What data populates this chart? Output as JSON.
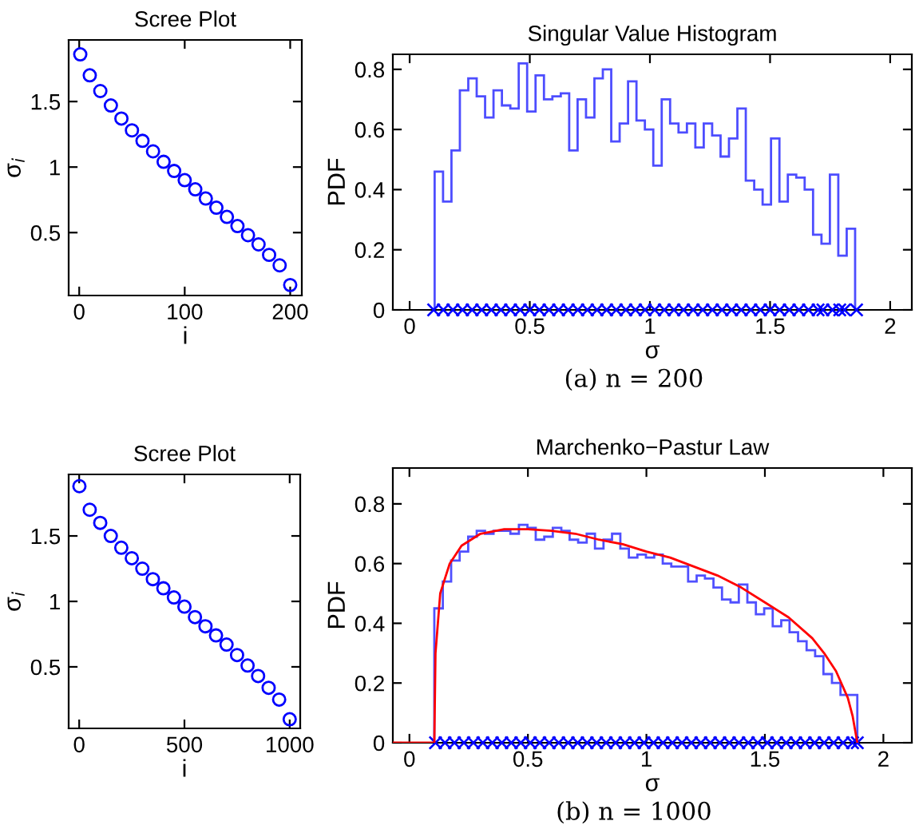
{
  "chart_data": [
    {
      "type": "scatter",
      "title": "Scree Plot",
      "xlabel": "i",
      "ylabel": "σ$_{i}$",
      "xlim": [
        -10,
        211
      ],
      "ylim": [
        0.02,
        1.97
      ],
      "xticks": [
        0,
        100,
        200
      ],
      "yticks": [
        0.5,
        1,
        1.5
      ],
      "marker": "circle",
      "series": [
        {
          "color": "#0000ff",
          "x": [
            1,
            10,
            20,
            30,
            40,
            50,
            60,
            70,
            80,
            90,
            100,
            110,
            120,
            130,
            140,
            150,
            160,
            170,
            180,
            190,
            200
          ],
          "values": [
            1.86,
            1.7,
            1.58,
            1.47,
            1.37,
            1.28,
            1.2,
            1.12,
            1.04,
            0.97,
            0.9,
            0.83,
            0.76,
            0.69,
            0.62,
            0.55,
            0.48,
            0.41,
            0.33,
            0.25,
            0.1
          ]
        }
      ]
    },
    {
      "type": "histogram",
      "title": "Singular Value Histogram",
      "xlabel": "σ",
      "ylabel": "PDF",
      "xlim": [
        -0.07,
        2.09
      ],
      "ylim": [
        0,
        0.85
      ],
      "xticks": [
        0,
        0.5,
        1,
        1.5,
        2
      ],
      "yticks": [
        0,
        0.2,
        0.4,
        0.6,
        0.8
      ],
      "color": "#4d4dff",
      "annotations": [
        "(a) n = 200"
      ],
      "bins": [
        0.104,
        0.139,
        0.174,
        0.209,
        0.244,
        0.279,
        0.314,
        0.349,
        0.384,
        0.419,
        0.454,
        0.489,
        0.524,
        0.559,
        0.594,
        0.629,
        0.664,
        0.699,
        0.734,
        0.769,
        0.804,
        0.839,
        0.874,
        0.909,
        0.944,
        0.979,
        1.014,
        1.049,
        1.084,
        1.119,
        1.154,
        1.189,
        1.224,
        1.259,
        1.294,
        1.329,
        1.364,
        1.399,
        1.434,
        1.469,
        1.504,
        1.539,
        1.574,
        1.609,
        1.644,
        1.679,
        1.714,
        1.749,
        1.784,
        1.819,
        1.854
      ],
      "values": [
        0.46,
        0.36,
        0.53,
        0.73,
        0.77,
        0.71,
        0.64,
        0.73,
        0.68,
        0.67,
        0.82,
        0.66,
        0.78,
        0.7,
        0.71,
        0.72,
        0.53,
        0.7,
        0.64,
        0.77,
        0.8,
        0.56,
        0.62,
        0.76,
        0.63,
        0.6,
        0.48,
        0.7,
        0.62,
        0.59,
        0.62,
        0.54,
        0.62,
        0.58,
        0.51,
        0.57,
        0.67,
        0.43,
        0.4,
        0.35,
        0.57,
        0.36,
        0.45,
        0.44,
        0.4,
        0.25,
        0.22,
        0.45,
        0.18,
        0.27
      ],
      "series": [
        {
          "type": "scatter",
          "marker": "cross",
          "color": "#0000ff",
          "x": [
            0.1,
            0.14,
            0.18,
            0.22,
            0.26,
            0.3,
            0.34,
            0.38,
            0.42,
            0.46,
            0.5,
            0.54,
            0.58,
            0.62,
            0.66,
            0.7,
            0.74,
            0.78,
            0.82,
            0.86,
            0.9,
            0.94,
            0.98,
            1.02,
            1.06,
            1.1,
            1.14,
            1.18,
            1.22,
            1.26,
            1.3,
            1.34,
            1.38,
            1.42,
            1.46,
            1.5,
            1.54,
            1.58,
            1.62,
            1.66,
            1.7,
            1.72,
            1.76,
            1.79,
            1.81,
            1.86
          ],
          "values": [
            0,
            0,
            0,
            0,
            0,
            0,
            0,
            0,
            0,
            0,
            0,
            0,
            0,
            0,
            0,
            0,
            0,
            0,
            0,
            0,
            0,
            0,
            0,
            0,
            0,
            0,
            0,
            0,
            0,
            0,
            0,
            0,
            0,
            0,
            0,
            0,
            0,
            0,
            0,
            0,
            0,
            0,
            0,
            0,
            0,
            0
          ]
        }
      ]
    },
    {
      "type": "scatter",
      "title": "Scree Plot",
      "xlabel": "i",
      "ylabel": "σ$_{i}$",
      "xlim": [
        -50,
        1050
      ],
      "ylim": [
        0.03,
        1.97
      ],
      "xticks": [
        0,
        500,
        1000
      ],
      "yticks": [
        0.5,
        1,
        1.5
      ],
      "marker": "circle",
      "series": [
        {
          "color": "#0000ff",
          "x": [
            1,
            50,
            100,
            150,
            200,
            250,
            300,
            350,
            400,
            450,
            500,
            550,
            600,
            650,
            700,
            750,
            800,
            850,
            900,
            950,
            1000
          ],
          "values": [
            1.88,
            1.7,
            1.6,
            1.5,
            1.41,
            1.33,
            1.25,
            1.17,
            1.1,
            1.03,
            0.96,
            0.88,
            0.81,
            0.74,
            0.67,
            0.59,
            0.51,
            0.43,
            0.34,
            0.25,
            0.1
          ]
        }
      ]
    },
    {
      "type": "histogram",
      "title": "Marchenko−Pastur Law",
      "xlabel": "σ",
      "ylabel": "PDF",
      "xlim": [
        -0.07,
        2.12
      ],
      "ylim": [
        0,
        0.92
      ],
      "xticks": [
        0,
        0.5,
        1,
        1.5,
        2
      ],
      "yticks": [
        0,
        0.2,
        0.4,
        0.6,
        0.8
      ],
      "color": "#5050ff",
      "annotations": [
        "(b) n = 1000"
      ],
      "bins": [
        0.105,
        0.141,
        0.176,
        0.212,
        0.248,
        0.284,
        0.319,
        0.355,
        0.391,
        0.426,
        0.462,
        0.498,
        0.533,
        0.569,
        0.605,
        0.641,
        0.676,
        0.712,
        0.748,
        0.783,
        0.819,
        0.855,
        0.89,
        0.926,
        0.962,
        0.998,
        1.033,
        1.069,
        1.105,
        1.14,
        1.176,
        1.212,
        1.247,
        1.283,
        1.319,
        1.355,
        1.39,
        1.426,
        1.462,
        1.497,
        1.533,
        1.569,
        1.604,
        1.64,
        1.676,
        1.712,
        1.747,
        1.783,
        1.819,
        1.854,
        1.89
      ],
      "values": [
        0.45,
        0.54,
        0.61,
        0.64,
        0.69,
        0.71,
        0.7,
        0.71,
        0.71,
        0.7,
        0.73,
        0.72,
        0.68,
        0.69,
        0.72,
        0.71,
        0.68,
        0.67,
        0.7,
        0.65,
        0.68,
        0.7,
        0.65,
        0.62,
        0.63,
        0.62,
        0.63,
        0.6,
        0.59,
        0.59,
        0.54,
        0.56,
        0.55,
        0.52,
        0.48,
        0.47,
        0.53,
        0.47,
        0.43,
        0.45,
        0.39,
        0.41,
        0.37,
        0.34,
        0.31,
        0.29,
        0.23,
        0.2,
        0.16,
        0.16
      ],
      "series": [
        {
          "type": "scatter",
          "marker": "cross",
          "color": "#0000ff",
          "x": [
            0.11,
            0.15,
            0.19,
            0.23,
            0.27,
            0.31,
            0.35,
            0.39,
            0.43,
            0.47,
            0.51,
            0.55,
            0.59,
            0.63,
            0.67,
            0.71,
            0.75,
            0.79,
            0.83,
            0.87,
            0.91,
            0.95,
            0.99,
            1.03,
            1.07,
            1.11,
            1.15,
            1.19,
            1.23,
            1.27,
            1.31,
            1.35,
            1.39,
            1.43,
            1.47,
            1.51,
            1.55,
            1.59,
            1.63,
            1.67,
            1.71,
            1.75,
            1.79,
            1.83,
            1.87,
            1.89
          ],
          "values": [
            0,
            0,
            0,
            0,
            0,
            0,
            0,
            0,
            0,
            0,
            0,
            0,
            0,
            0,
            0,
            0,
            0,
            0,
            0,
            0,
            0,
            0,
            0,
            0,
            0,
            0,
            0,
            0,
            0,
            0,
            0,
            0,
            0,
            0,
            0,
            0,
            0,
            0,
            0,
            0,
            0,
            0,
            0,
            0,
            0,
            0
          ]
        },
        {
          "type": "line",
          "color": "#ff0000",
          "x": [
            -0.07,
            0.105,
            0.11,
            0.13,
            0.17,
            0.22,
            0.3,
            0.4,
            0.5,
            0.6,
            0.7,
            0.8,
            0.9,
            1.0,
            1.1,
            1.2,
            1.3,
            1.4,
            1.5,
            1.6,
            1.7,
            1.75,
            1.8,
            1.85,
            1.87,
            1.89
          ],
          "values": [
            0,
            0,
            0.3,
            0.5,
            0.6,
            0.66,
            0.7,
            0.715,
            0.715,
            0.71,
            0.7,
            0.68,
            0.665,
            0.64,
            0.62,
            0.59,
            0.56,
            0.52,
            0.47,
            0.42,
            0.35,
            0.3,
            0.24,
            0.15,
            0.09,
            0
          ]
        }
      ]
    }
  ]
}
